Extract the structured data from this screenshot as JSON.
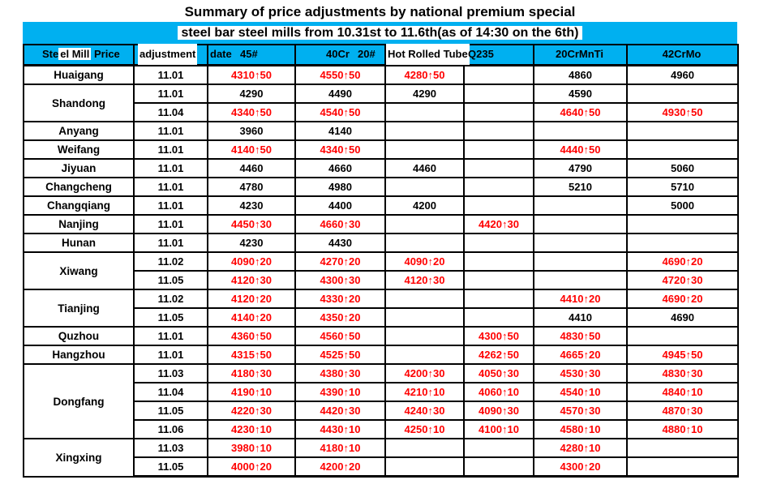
{
  "title": {
    "line1": "Summary of price adjustments by national premium special",
    "line2": "steel bar steel mills from 10.31st to 11.6th(as of 14:30 on the 6th)"
  },
  "colors": {
    "accent_cyan": "#00B0F0",
    "increase_red": "#FF0000",
    "border_black": "#000000"
  },
  "header_overlay": {
    "steel_pre": "Ste",
    "steel_hl": "el Mill",
    "steel_post": " Price",
    "adjustment": "adjustment",
    "date": "date",
    "c45": "45#",
    "c40cr": "40Cr",
    "c20": "20#",
    "tube": "Hot Rolled Tube",
    "q235": "Q235",
    "crmnti": "20CrMnTi",
    "crmo": "42CrMo"
  },
  "table": {
    "columns": [
      "Steel Mill",
      "Price adjustment date",
      "45#",
      "40Cr",
      "20#Hot Rolled Tube",
      "Q235",
      "20CrMnTi",
      "42CrMo"
    ],
    "groups": [
      {
        "mill": "Huaigang",
        "rows": [
          {
            "date": "11.01",
            "values": [
              "4310↑50",
              "4550↑50",
              "4280↑50",
              "",
              "4860",
              "4960"
            ]
          }
        ]
      },
      {
        "mill": "Shandong",
        "rows": [
          {
            "date": "11.01",
            "values": [
              "4290",
              "4490",
              "4290",
              "",
              "4590",
              ""
            ]
          },
          {
            "date": "11.04",
            "values": [
              "4340↑50",
              "4540↑50",
              "",
              "",
              "4640↑50",
              "4930↑50"
            ]
          }
        ]
      },
      {
        "mill": "Anyang",
        "rows": [
          {
            "date": "11.01",
            "values": [
              "3960",
              "4140",
              "",
              "",
              "",
              ""
            ]
          }
        ]
      },
      {
        "mill": "Weifang",
        "rows": [
          {
            "date": "11.01",
            "values": [
              "4140↑50",
              "4340↑50",
              "",
              "",
              "4440↑50",
              ""
            ]
          }
        ]
      },
      {
        "mill": "Jiyuan",
        "rows": [
          {
            "date": "11.01",
            "values": [
              "4460",
              "4660",
              "4460",
              "",
              "4790",
              "5060"
            ]
          }
        ]
      },
      {
        "mill": "Changcheng",
        "rows": [
          {
            "date": "11.01",
            "values": [
              "4780",
              "4980",
              "",
              "",
              "5210",
              "5710"
            ]
          }
        ]
      },
      {
        "mill": "Changqiang",
        "rows": [
          {
            "date": "11.01",
            "values": [
              "4230",
              "4400",
              "4200",
              "",
              "",
              "5000"
            ]
          }
        ]
      },
      {
        "mill": "Nanjing",
        "rows": [
          {
            "date": "11.01",
            "values": [
              "4450↑30",
              "4660↑30",
              "",
              "4420↑30",
              "",
              ""
            ]
          }
        ]
      },
      {
        "mill": "Hunan",
        "rows": [
          {
            "date": "11.01",
            "values": [
              "4230",
              "4430",
              "",
              "",
              "",
              ""
            ]
          }
        ]
      },
      {
        "mill": "Xiwang",
        "rows": [
          {
            "date": "11.02",
            "values": [
              "4090↑20",
              "4270↑20",
              "4090↑20",
              "",
              "",
              "4690↑20"
            ]
          },
          {
            "date": "11.05",
            "values": [
              "4120↑30",
              "4300↑30",
              "4120↑30",
              "",
              "",
              "4720↑30"
            ]
          }
        ]
      },
      {
        "mill": "Tianjing",
        "rows": [
          {
            "date": "11.02",
            "values": [
              "4120↑20",
              "4330↑20",
              "",
              "",
              "4410↑20",
              "4690↑20"
            ]
          },
          {
            "date": "11.05",
            "values": [
              "4140↑20",
              "4350↑20",
              "",
              "",
              "4410",
              "4690"
            ]
          }
        ]
      },
      {
        "mill": "Quzhou",
        "rows": [
          {
            "date": "11.01",
            "values": [
              "4360↑50",
              "4560↑50",
              "",
              "4300↑50",
              "4830↑50",
              ""
            ]
          }
        ]
      },
      {
        "mill": "Hangzhou",
        "rows": [
          {
            "date": "11.01",
            "values": [
              "4315↑50",
              "4525↑50",
              "",
              "4262↑50",
              "4665↑20",
              "4945↑50"
            ]
          }
        ]
      },
      {
        "mill": "Dongfang",
        "rows": [
          {
            "date": "11.03",
            "values": [
              "4180↑30",
              "4380↑30",
              "4200↑30",
              "4050↑30",
              "4530↑30",
              "4830↑30"
            ]
          },
          {
            "date": "11.04",
            "values": [
              "4190↑10",
              "4390↑10",
              "4210↑10",
              "4060↑10",
              "4540↑10",
              "4840↑10"
            ]
          },
          {
            "date": "11.05",
            "values": [
              "4220↑30",
              "4420↑30",
              "4240↑30",
              "4090↑30",
              "4570↑30",
              "4870↑30"
            ]
          },
          {
            "date": "11.06",
            "values": [
              "4230↑10",
              "4430↑10",
              "4250↑10",
              "4100↑10",
              "4580↑10",
              "4880↑10"
            ]
          }
        ]
      },
      {
        "mill": "Xingxing",
        "rows": [
          {
            "date": "11.03",
            "values": [
              "3980↑10",
              "4180↑10",
              "",
              "",
              "4280↑10",
              ""
            ]
          },
          {
            "date": "11.05",
            "values": [
              "4000↑20",
              "4200↑20",
              "",
              "",
              "4300↑20",
              ""
            ]
          }
        ]
      }
    ]
  }
}
